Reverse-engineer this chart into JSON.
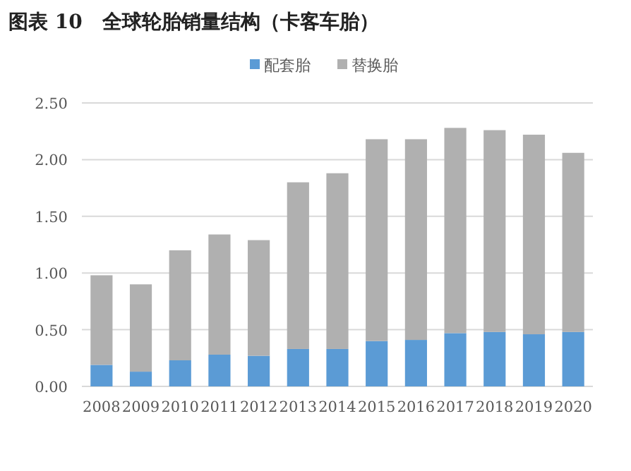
{
  "chart_data": {
    "type": "bar",
    "title": "图表 10　全球轮胎销量结构（卡客车胎）",
    "stacked": true,
    "categories": [
      "2008",
      "2009",
      "2010",
      "2011",
      "2012",
      "2013",
      "2014",
      "2015",
      "2016",
      "2017",
      "2018",
      "2019",
      "2020"
    ],
    "series": [
      {
        "name": "配套胎",
        "color": "#5b9bd5",
        "values": [
          0.19,
          0.13,
          0.23,
          0.28,
          0.27,
          0.33,
          0.33,
          0.4,
          0.41,
          0.47,
          0.48,
          0.46,
          0.48
        ]
      },
      {
        "name": "替换胎",
        "color": "#b0b0b0",
        "values": [
          0.79,
          0.77,
          0.97,
          1.06,
          1.02,
          1.47,
          1.55,
          1.78,
          1.77,
          1.81,
          1.78,
          1.76,
          1.58
        ]
      }
    ],
    "ylim": [
      0,
      2.5
    ],
    "yticks": [
      {
        "value": 0,
        "label": "0.00"
      },
      {
        "value": 0.5,
        "label": "0.50"
      },
      {
        "value": 1,
        "label": "1.00"
      },
      {
        "value": 1.5,
        "label": "1.50"
      },
      {
        "value": 2,
        "label": "2.00"
      },
      {
        "value": 2.5,
        "label": "2.50"
      }
    ],
    "grid": "y",
    "legend": "top"
  }
}
